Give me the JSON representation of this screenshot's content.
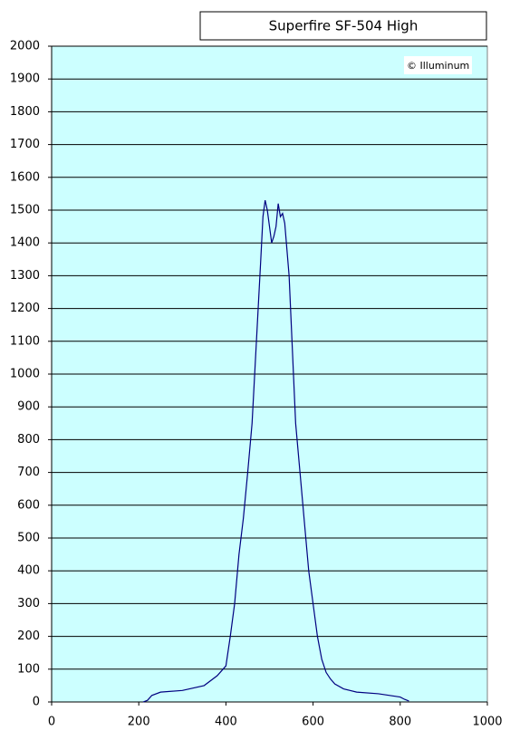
{
  "chart_data": {
    "type": "line",
    "title": "Superfire SF-504 High",
    "annotation": "© Illuminum",
    "x": [
      210,
      220,
      230,
      250,
      300,
      350,
      380,
      400,
      410,
      420,
      430,
      440,
      450,
      460,
      470,
      480,
      485,
      490,
      495,
      500,
      505,
      510,
      515,
      520,
      525,
      530,
      535,
      540,
      545,
      550,
      555,
      560,
      570,
      580,
      590,
      600,
      610,
      620,
      630,
      640,
      650,
      670,
      700,
      750,
      800,
      810,
      820
    ],
    "series": [
      {
        "name": "Superfire SF-504 High",
        "color": "#000080",
        "values": [
          0,
          5,
          20,
          30,
          35,
          50,
          80,
          110,
          200,
          300,
          450,
          560,
          700,
          850,
          1100,
          1350,
          1480,
          1530,
          1500,
          1450,
          1400,
          1420,
          1450,
          1520,
          1480,
          1490,
          1460,
          1380,
          1300,
          1150,
          1000,
          850,
          700,
          550,
          400,
          300,
          200,
          130,
          90,
          70,
          55,
          40,
          30,
          25,
          15,
          8,
          3
        ]
      }
    ],
    "xlim": [
      0,
      1000
    ],
    "xticks": [
      0,
      200,
      400,
      600,
      800,
      1000
    ],
    "ylim": [
      0,
      2000
    ],
    "yticks": [
      0,
      100,
      200,
      300,
      400,
      500,
      600,
      700,
      800,
      900,
      1000,
      1100,
      1200,
      1300,
      1400,
      1500,
      1600,
      1700,
      1800,
      1900,
      2000
    ],
    "grid": true,
    "plot_background": "#ccffff"
  }
}
